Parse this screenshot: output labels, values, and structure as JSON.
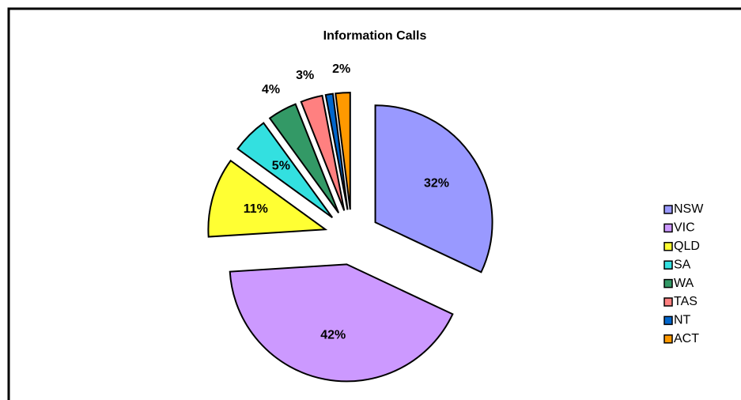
{
  "chart_data": {
    "type": "pie",
    "title": "Information Calls",
    "categories": [
      "NSW",
      "VIC",
      "QLD",
      "SA",
      "WA",
      "TAS",
      "NT",
      "ACT"
    ],
    "values": [
      32,
      42,
      11,
      5,
      4,
      3,
      1,
      2
    ],
    "value_labels": [
      "32%",
      "42%",
      "11%",
      "5%",
      "4%",
      "3%",
      null,
      "2%"
    ],
    "colors": [
      "#9999ff",
      "#cc99ff",
      "#ffff33",
      "#33e0e0",
      "#339966",
      "#ff8080",
      "#0066cc",
      "#ff9900"
    ],
    "legend": "right"
  }
}
